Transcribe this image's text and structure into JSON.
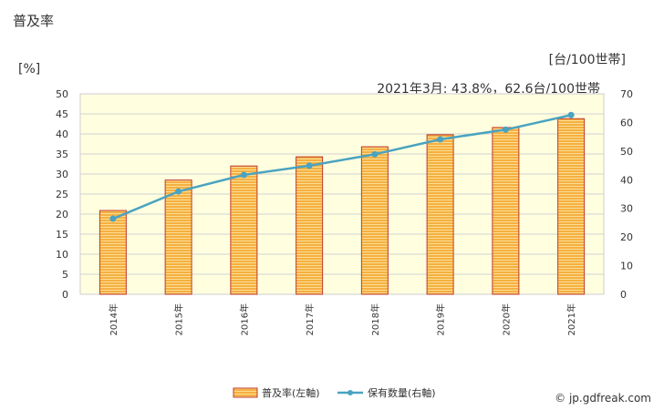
{
  "chart_data": {
    "type": "bar+line",
    "title": "普及率",
    "left_axis_label": "[%]",
    "right_axis_label": "[台/100世帯]",
    "annotation": "2021年3月: 43.8%，62.6台/100世帯",
    "categories": [
      "2014年",
      "2015年",
      "2016年",
      "2017年",
      "2018年",
      "2019年",
      "2020年",
      "2021年"
    ],
    "left_ylim": [
      0,
      50
    ],
    "left_ticks": [
      "0",
      "5",
      "10",
      "15",
      "20",
      "25",
      "30",
      "35",
      "40",
      "45",
      "50"
    ],
    "right_ylim": [
      0,
      70
    ],
    "right_ticks": [
      "0",
      "10",
      "20",
      "30",
      "40",
      "50",
      "60",
      "70"
    ],
    "series": [
      {
        "name": "普及率(左軸)",
        "type": "bar",
        "axis": "left",
        "values": [
          20.9,
          28.5,
          32.0,
          34.3,
          36.8,
          39.8,
          41.6,
          43.8
        ]
      },
      {
        "name": "保有数量(右軸)",
        "type": "line",
        "axis": "right",
        "values": [
          26.4,
          35.9,
          41.7,
          44.9,
          48.9,
          54.1,
          57.5,
          62.6
        ]
      }
    ],
    "colors": {
      "bar_fill": "#f5b041",
      "bar_stroke": "#c0392b",
      "bar_stripe": "#fde9a8",
      "line": "#4aa3c0",
      "plot_bg": "#ffffe0",
      "grid": "#d0d0d0"
    }
  },
  "watermark": "© jp.gdfreak.com"
}
